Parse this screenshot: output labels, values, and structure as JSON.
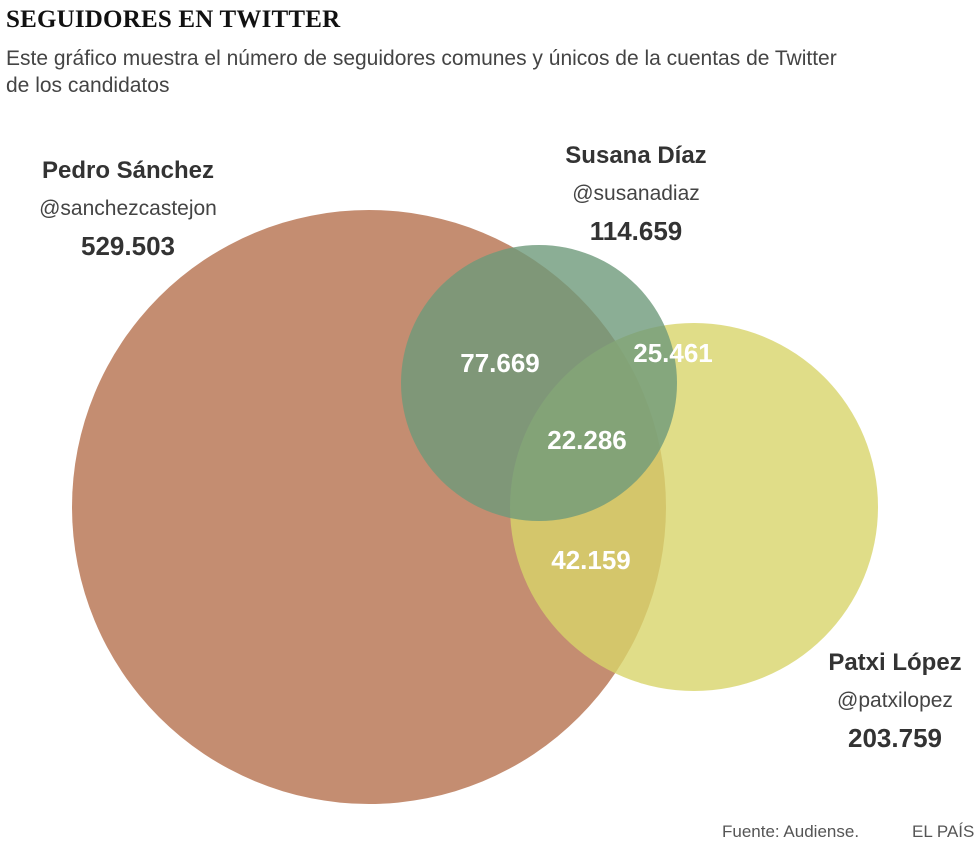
{
  "title": "SEGUIDORES EN TWITTER",
  "subtitle": "Este gráfico muestra el número de seguidores comunes y únicos de la cuentas de Twitter de los candidatos",
  "source": "Fuente: Audiense.",
  "brand": "EL PAÍS",
  "colors": {
    "sanchez": "#b5714e",
    "diaz": "#6e9a7a",
    "lopez": "#d8d46a"
  },
  "chart_data": {
    "type": "venn",
    "title": "SEGUIDORES EN TWITTER",
    "sets": [
      {
        "name": "Pedro Sánchez",
        "handle": "@sanchezcastejon",
        "total": "529.503",
        "value": 529503
      },
      {
        "name": "Susana Díaz",
        "handle": "@susanadiaz",
        "total": "114.659",
        "value": 114659
      },
      {
        "name": "Patxi López",
        "handle": "@patxilopez",
        "total": "203.759",
        "value": 203759
      }
    ],
    "intersections": [
      {
        "sets": [
          "Pedro Sánchez",
          "Susana Díaz"
        ],
        "label": "77.669",
        "value": 77669
      },
      {
        "sets": [
          "Susana Díaz",
          "Patxi López"
        ],
        "label": "25.461",
        "value": 25461
      },
      {
        "sets": [
          "Pedro Sánchez",
          "Susana Díaz",
          "Patxi López"
        ],
        "label": "22.286",
        "value": 22286
      },
      {
        "sets": [
          "Pedro Sánchez",
          "Patxi López"
        ],
        "label": "42.159",
        "value": 42159
      }
    ]
  }
}
